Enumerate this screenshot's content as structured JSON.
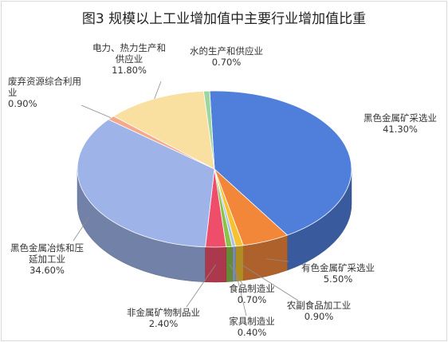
{
  "chart_data": {
    "type": "pie",
    "title": "图3   规模以上工业增加值中主要行业增加值比重",
    "legend": "none",
    "slices": [
      {
        "name": "黑色金属矿采选业",
        "value": 41.3,
        "label": "41.30%",
        "color": "#4F7FDB"
      },
      {
        "name": "有色金属矿采选业",
        "value": 5.5,
        "label": "5.50%",
        "color": "#F2873A"
      },
      {
        "name": "农副食品加工业",
        "value": 0.9,
        "label": "0.90%",
        "color": "#F6C231"
      },
      {
        "name": "家具制造业",
        "value": 0.4,
        "label": "0.40%",
        "color": "#A9C1E8"
      },
      {
        "name": "食品制造业",
        "value": 0.7,
        "label": "0.70%",
        "color": "#8BC34A"
      },
      {
        "name": "非金属矿物制品业",
        "value": 2.4,
        "label": "2.40%",
        "color": "#EE4E6A"
      },
      {
        "name": "黑色金属冶炼和压延加工业",
        "value": 34.6,
        "label": "34.60%",
        "color": "#9EB3E8"
      },
      {
        "name": "废弃资源综合利用业",
        "value": 0.9,
        "label": "0.90%",
        "color": "#F6A98A"
      },
      {
        "name": "电力、热力生产和供应业",
        "value": 11.8,
        "label": "11.80%",
        "color": "#F9DFA0"
      },
      {
        "name": "水的生产和供应业",
        "value": 0.7,
        "label": "0.70%",
        "color": "#9DD7A0"
      }
    ]
  }
}
